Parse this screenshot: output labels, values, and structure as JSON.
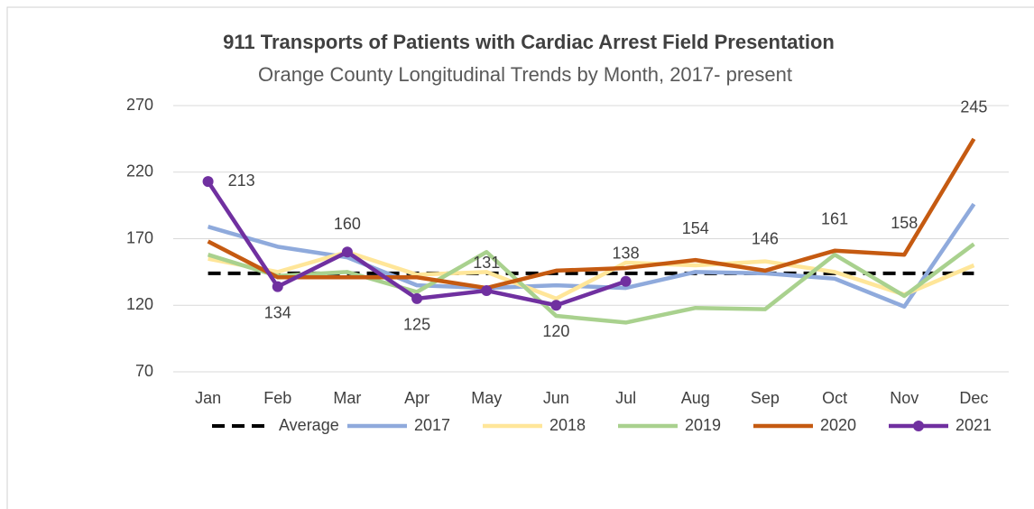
{
  "chart_data": {
    "type": "line",
    "title": "911 Transports of Patients with Cardiac Arrest Field Presentation",
    "subtitle": "Orange County Longitudinal Trends by Month, 2017- present",
    "categories": [
      "Jan",
      "Feb",
      "Mar",
      "Apr",
      "May",
      "Jun",
      "Jul",
      "Aug",
      "Sep",
      "Oct",
      "Nov",
      "Dec"
    ],
    "ylim": [
      70,
      270
    ],
    "yticks": [
      70,
      120,
      170,
      220,
      270
    ],
    "grid": true,
    "legend": "bottom",
    "series": [
      {
        "name": "Average",
        "color": "#000000",
        "dashed": true,
        "values": [
          144,
          144,
          144,
          144,
          144,
          144,
          144,
          144,
          144,
          144,
          144,
          144
        ]
      },
      {
        "name": "2017",
        "color": "#8faadc",
        "values": [
          179,
          164,
          156,
          135,
          133,
          135,
          133,
          145,
          144,
          140,
          119,
          196
        ]
      },
      {
        "name": "2018",
        "color": "#ffe699",
        "values": [
          155,
          145,
          160,
          143,
          145,
          125,
          152,
          150,
          153,
          145,
          128,
          150
        ]
      },
      {
        "name": "2019",
        "color": "#a9d18e",
        "values": [
          158,
          142,
          145,
          130,
          160,
          112,
          107,
          118,
          117,
          158,
          127,
          166
        ]
      },
      {
        "name": "2020",
        "color": "#c55a11",
        "label_position": "above",
        "show_labels": [
          false,
          false,
          false,
          false,
          false,
          false,
          false,
          true,
          true,
          true,
          true,
          true
        ],
        "values": [
          168,
          141,
          141,
          141,
          133,
          146,
          148,
          154,
          146,
          161,
          158,
          245
        ]
      },
      {
        "name": "2021",
        "color": "#7030a0",
        "markers": true,
        "show_labels": [
          true,
          true,
          true,
          true,
          true,
          true,
          true,
          false,
          false,
          false,
          false,
          false
        ],
        "values": [
          213,
          134,
          160,
          125,
          131,
          120,
          138,
          null,
          null,
          null,
          null,
          null
        ]
      }
    ]
  }
}
